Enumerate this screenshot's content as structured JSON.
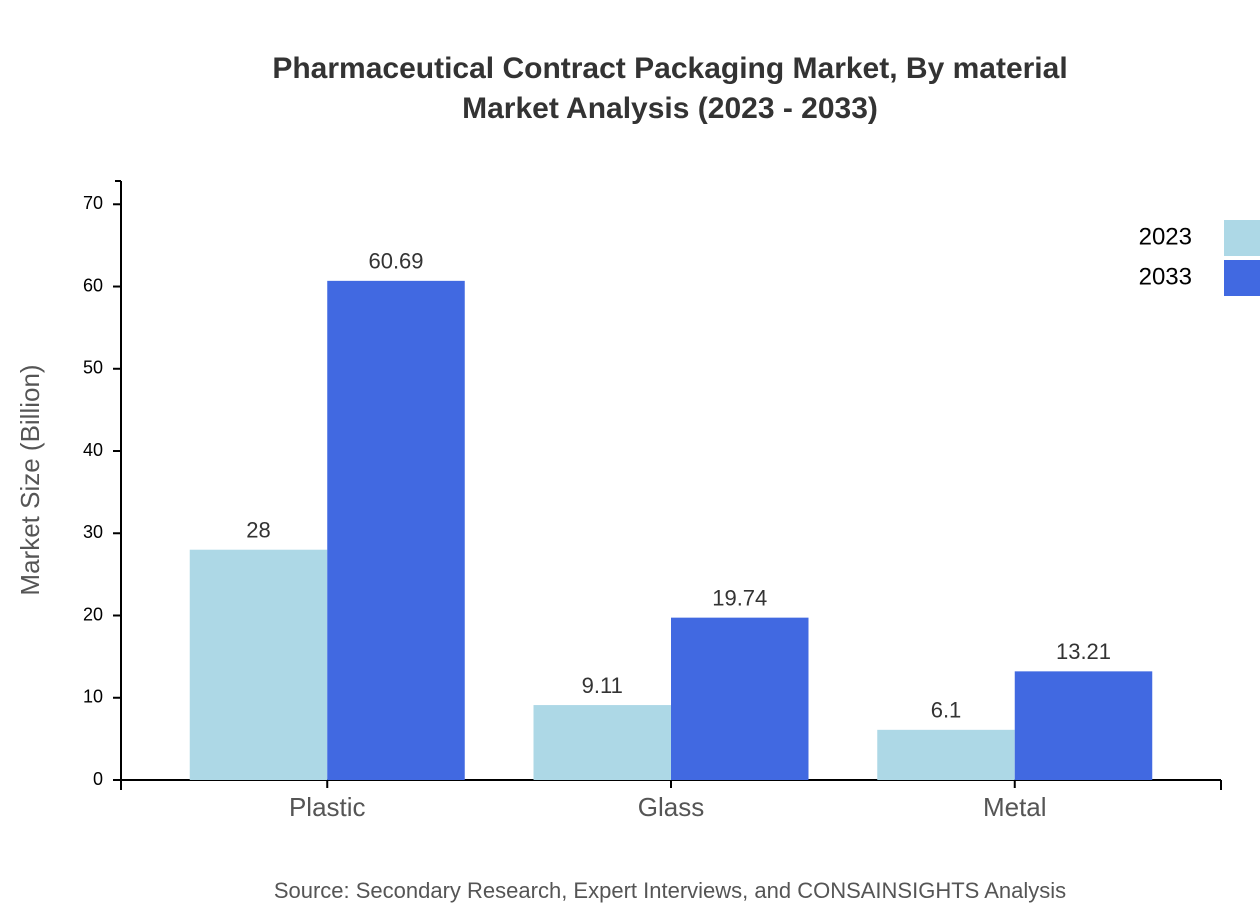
{
  "chart_data": {
    "type": "bar",
    "title": "Pharmaceutical Contract Packaging Market, By material",
    "subtitle": "Market Analysis (2023 - 2033)",
    "y_label": "Market Size (Billion)",
    "source": "Source: Secondary Research, Expert Interviews, and CONSAINSIGHTS Analysis",
    "categories": [
      "Plastic",
      "Glass",
      "Metal"
    ],
    "series": [
      {
        "name": "2023",
        "color": "#add8e6",
        "values": [
          28,
          9.11,
          6.1
        ]
      },
      {
        "name": "2033",
        "color": "#4169e1",
        "values": [
          60.69,
          19.74,
          13.21
        ]
      }
    ],
    "ylim": [
      0,
      72.83
    ],
    "yticks": [
      0,
      10,
      20,
      30,
      40,
      50,
      60,
      70
    ],
    "legend": "top-right"
  }
}
